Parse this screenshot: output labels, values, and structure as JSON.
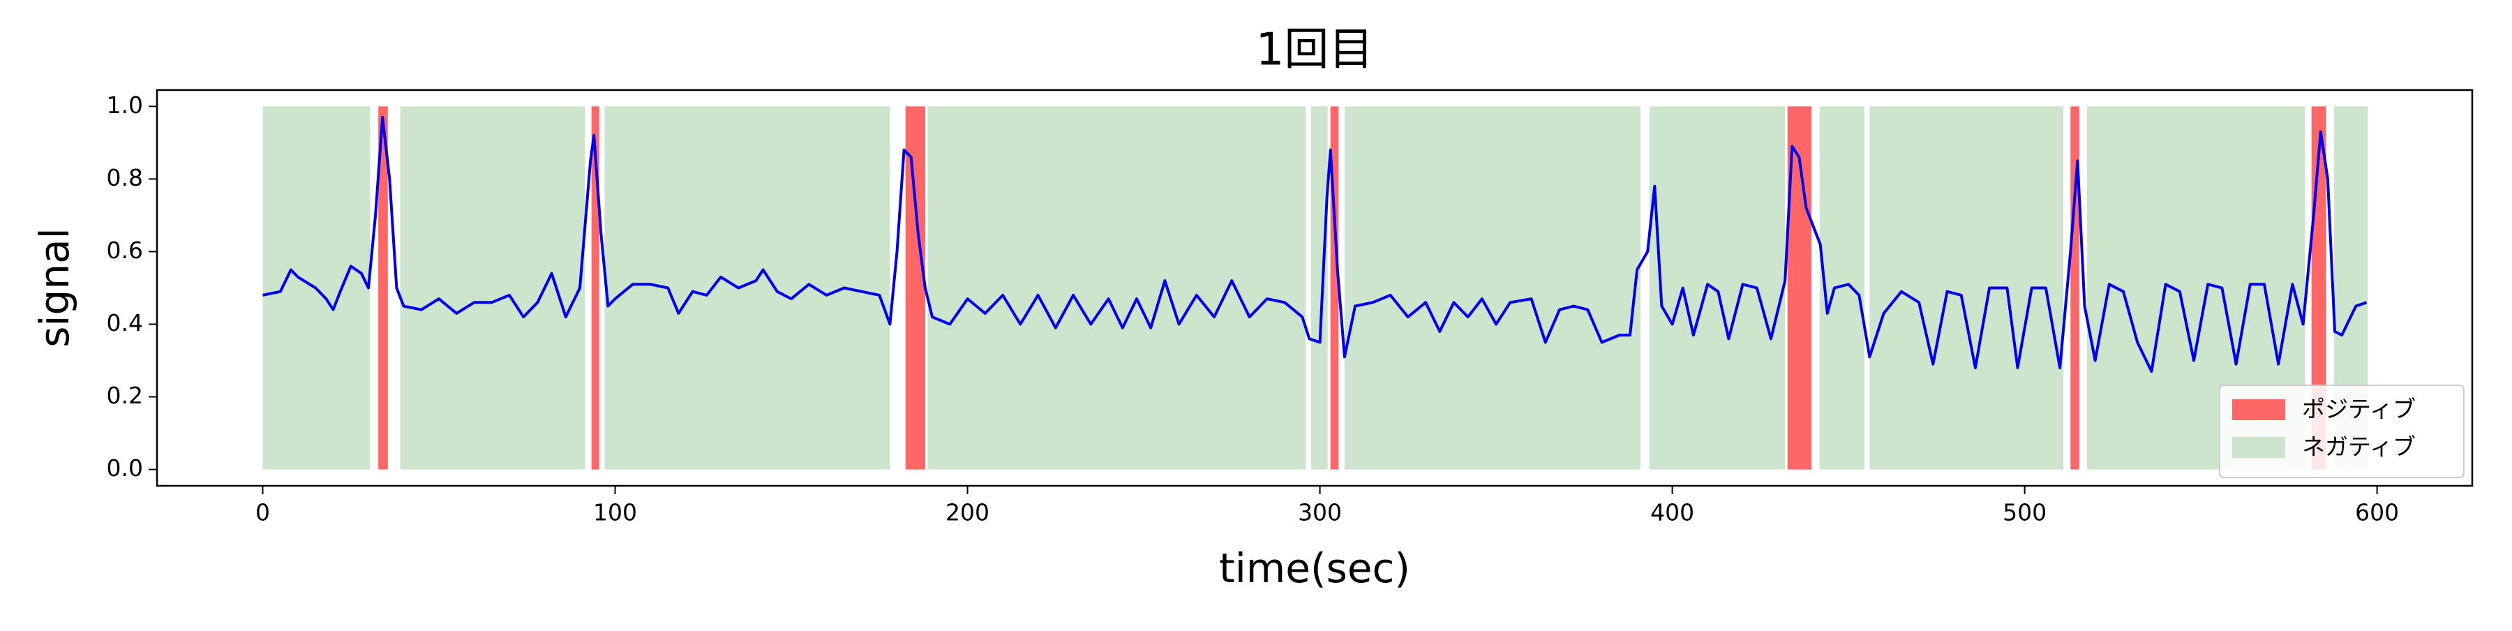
{
  "chart_data": {
    "type": "line",
    "title": "1回目",
    "x_label": "time(sec)",
    "y_label": "signal",
    "xlim": [
      -30,
      627
    ],
    "ylim": [
      -0.045,
      1.045
    ],
    "xticks": [
      0,
      100,
      200,
      300,
      400,
      500,
      600
    ],
    "yticks": [
      {
        "value": 0,
        "label": "0.0"
      },
      {
        "value": 0.2,
        "label": "0.2"
      },
      {
        "value": 0.4,
        "label": "0.4"
      },
      {
        "value": 0.6,
        "label": "0.6"
      },
      {
        "value": 0.8,
        "label": "0.8"
      },
      {
        "value": 1,
        "label": "1.0"
      }
    ],
    "legend_position": "lower right",
    "line": {
      "color": "#0000ee",
      "x": [
        0,
        5,
        8,
        10,
        15,
        18,
        20,
        22,
        25,
        28,
        30,
        32,
        34,
        36,
        38,
        40,
        45,
        50,
        55,
        60,
        65,
        70,
        74,
        78,
        82,
        86,
        90,
        93,
        94,
        96,
        98,
        100,
        105,
        110,
        115,
        118,
        122,
        126,
        130,
        135,
        140,
        142,
        146,
        150,
        155,
        160,
        165,
        170,
        175,
        178,
        180,
        182,
        184,
        186,
        188,
        190,
        195,
        200,
        205,
        210,
        215,
        220,
        225,
        230,
        235,
        240,
        244,
        248,
        252,
        256,
        260,
        265,
        270,
        275,
        280,
        285,
        290,
        295,
        297,
        300,
        302,
        303,
        305,
        307,
        310,
        315,
        320,
        325,
        330,
        334,
        338,
        342,
        346,
        350,
        354,
        360,
        364,
        368,
        372,
        376,
        380,
        385,
        388,
        390,
        393,
        395,
        397,
        400,
        403,
        406,
        410,
        413,
        416,
        420,
        424,
        428,
        432,
        434,
        436,
        438,
        442,
        444,
        446,
        450,
        453,
        456,
        460,
        465,
        470,
        474,
        478,
        482,
        486,
        490,
        495,
        498,
        502,
        506,
        510,
        513,
        515,
        517,
        520,
        524,
        528,
        532,
        536,
        540,
        544,
        548,
        552,
        556,
        560,
        564,
        568,
        572,
        576,
        579,
        582,
        584,
        586,
        588,
        590,
        594,
        597
      ],
      "values": [
        0.48,
        0.49,
        0.55,
        0.53,
        0.5,
        0.47,
        0.44,
        0.49,
        0.56,
        0.54,
        0.5,
        0.7,
        0.97,
        0.8,
        0.5,
        0.45,
        0.44,
        0.47,
        0.43,
        0.46,
        0.46,
        0.48,
        0.42,
        0.46,
        0.54,
        0.42,
        0.5,
        0.85,
        0.92,
        0.65,
        0.45,
        0.47,
        0.51,
        0.51,
        0.5,
        0.43,
        0.49,
        0.48,
        0.53,
        0.5,
        0.52,
        0.55,
        0.49,
        0.47,
        0.51,
        0.48,
        0.5,
        0.49,
        0.48,
        0.4,
        0.6,
        0.88,
        0.86,
        0.65,
        0.5,
        0.42,
        0.4,
        0.47,
        0.43,
        0.48,
        0.4,
        0.48,
        0.39,
        0.48,
        0.4,
        0.47,
        0.39,
        0.47,
        0.39,
        0.52,
        0.4,
        0.48,
        0.42,
        0.52,
        0.42,
        0.47,
        0.46,
        0.42,
        0.36,
        0.35,
        0.75,
        0.88,
        0.55,
        0.31,
        0.45,
        0.46,
        0.48,
        0.42,
        0.46,
        0.38,
        0.46,
        0.42,
        0.47,
        0.4,
        0.46,
        0.47,
        0.35,
        0.44,
        0.45,
        0.44,
        0.35,
        0.37,
        0.37,
        0.55,
        0.6,
        0.78,
        0.45,
        0.4,
        0.5,
        0.37,
        0.51,
        0.49,
        0.36,
        0.51,
        0.5,
        0.36,
        0.52,
        0.89,
        0.86,
        0.72,
        0.62,
        0.43,
        0.5,
        0.51,
        0.48,
        0.31,
        0.43,
        0.49,
        0.46,
        0.29,
        0.49,
        0.48,
        0.28,
        0.5,
        0.5,
        0.28,
        0.5,
        0.5,
        0.28,
        0.6,
        0.85,
        0.45,
        0.3,
        0.51,
        0.49,
        0.35,
        0.27,
        0.51,
        0.49,
        0.3,
        0.51,
        0.5,
        0.29,
        0.51,
        0.51,
        0.29,
        0.51,
        0.4,
        0.7,
        0.93,
        0.8,
        0.38,
        0.37,
        0.45,
        0.46
      ]
    },
    "spans": [
      {
        "name": "ポジティブ",
        "color": "#ff6666",
        "span_y": [
          0,
          1
        ],
        "ranges": [
          [
            32.8,
            35.5
          ],
          [
            93.3,
            95.5
          ],
          [
            182.4,
            188
          ],
          [
            303,
            305.3
          ],
          [
            432.7,
            439.5
          ],
          [
            513,
            515.5
          ],
          [
            581.4,
            585.5
          ]
        ]
      },
      {
        "name": "ネガティブ",
        "color": "#cce5cc",
        "span_y": [
          0,
          1
        ],
        "ranges": [
          [
            0,
            30.5
          ],
          [
            39,
            91.4
          ],
          [
            97,
            178
          ],
          [
            188.7,
            296
          ],
          [
            297.5,
            302.2
          ],
          [
            307,
            391
          ],
          [
            393.5,
            432
          ],
          [
            441.8,
            454.5
          ],
          [
            456,
            511
          ],
          [
            517.7,
            579.6
          ],
          [
            587.8,
            597.4
          ]
        ]
      }
    ]
  }
}
